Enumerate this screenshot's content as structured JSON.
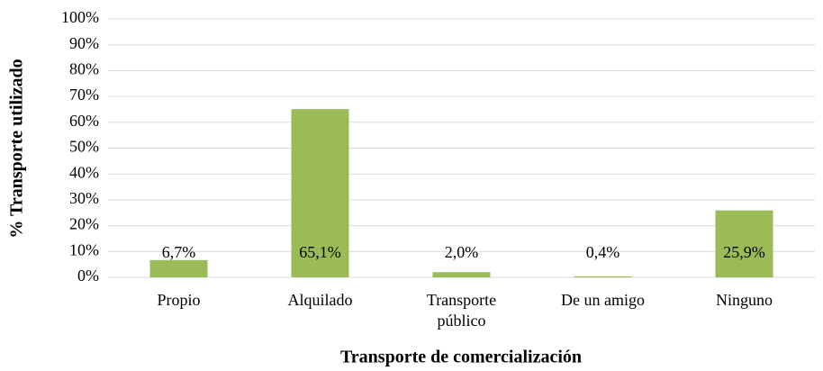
{
  "chart_data": {
    "type": "bar",
    "categories": [
      "Propio",
      "Alquilado",
      "Transporte público",
      "De un amigo",
      "Ninguno"
    ],
    "values": [
      6.7,
      65.1,
      2.0,
      0.4,
      25.9
    ],
    "value_labels": [
      "6,7%",
      "65,1%",
      "2,0%",
      "0,4%",
      "25,9%"
    ],
    "color": "#9bbb59",
    "xlabel": "Transporte de comercialización",
    "ylabel": "% Transporte utilizado",
    "ylim": [
      0,
      100
    ],
    "yticks": [
      {
        "value": 0,
        "label": "0%"
      },
      {
        "value": 10,
        "label": "10%"
      },
      {
        "value": 20,
        "label": "20%"
      },
      {
        "value": 30,
        "label": "30%"
      },
      {
        "value": 40,
        "label": "40%"
      },
      {
        "value": 50,
        "label": "50%"
      },
      {
        "value": 60,
        "label": "60%"
      },
      {
        "value": 70,
        "label": "70%"
      },
      {
        "value": 80,
        "label": "80%"
      },
      {
        "value": 90,
        "label": "90%"
      },
      {
        "value": 100,
        "label": "100%"
      }
    ],
    "grid": true
  }
}
